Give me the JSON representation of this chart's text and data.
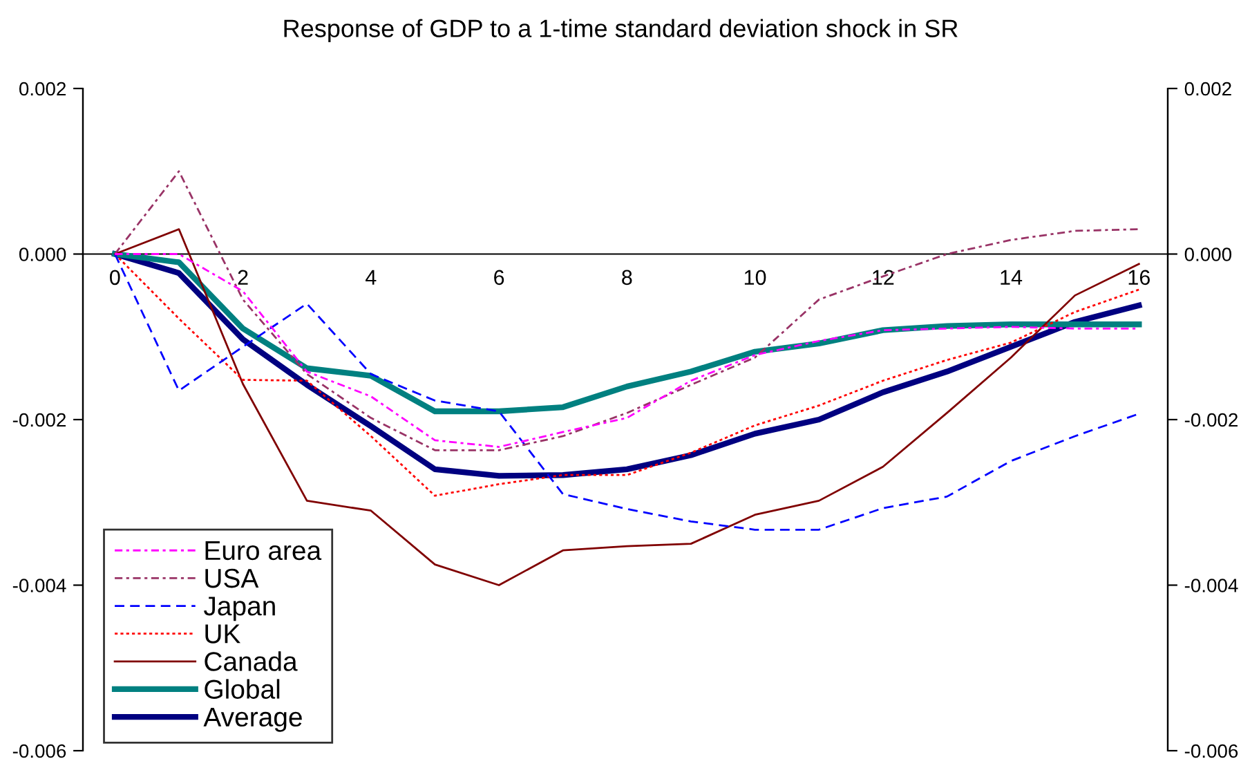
{
  "chart_data": {
    "type": "line",
    "title": "Response of GDP to a 1-time standard deviation shock in SR",
    "categories": [
      "0",
      null,
      "2",
      null,
      "4",
      null,
      "6",
      null,
      "8",
      null,
      "10",
      null,
      "12",
      null,
      "14",
      null,
      "16"
    ],
    "ylim": [
      -0.006,
      0.002
    ],
    "yticks": [
      {
        "value": -0.006,
        "label": "-0.006"
      },
      {
        "value": -0.004,
        "label": "-0.004"
      },
      {
        "value": -0.002,
        "label": "-0.002"
      },
      {
        "value": 0,
        "label": "0.000"
      },
      {
        "value": 0.002,
        "label": "0.002"
      }
    ],
    "y2lim": [
      -0.006,
      0.002
    ],
    "y2ticks": [
      {
        "value": -0.006,
        "label": "-0.006"
      },
      {
        "value": -0.004,
        "label": "-0.004"
      },
      {
        "value": -0.002,
        "label": "-0.002"
      },
      {
        "value": 0,
        "label": "0.000"
      },
      {
        "value": 0.002,
        "label": "0.002"
      }
    ],
    "grid": false,
    "legend": "bottom left",
    "marker": "none",
    "series": [
      {
        "name": "Euro area",
        "color": "#ff00ff",
        "line_style": "dashdot",
        "values": [
          0,
          0,
          -0.00045,
          -0.00142,
          -0.00172,
          -0.00225,
          -0.00233,
          -0.00215,
          -0.00198,
          -0.00153,
          -0.00122,
          -0.00105,
          -0.00092,
          -0.0009,
          -0.00088,
          -0.0009,
          -0.0009
        ]
      },
      {
        "name": "USA",
        "color": "#993366",
        "line_style": "dashdot",
        "values": [
          0,
          0.001,
          -0.00055,
          -0.00145,
          -0.00198,
          -0.00237,
          -0.00237,
          -0.0022,
          -0.00192,
          -0.00158,
          -0.00125,
          -0.00055,
          -0.00027,
          0,
          0.00017,
          0.00028,
          0.0003
        ]
      },
      {
        "name": "Japan",
        "color": "#0000ff",
        "line_style": "dashed",
        "values": [
          0,
          -0.00165,
          -0.00112,
          -0.0006,
          -0.00145,
          -0.00177,
          -0.0019,
          -0.0029,
          -0.00308,
          -0.00323,
          -0.00333,
          -0.00333,
          -0.00307,
          -0.00293,
          -0.0025,
          -0.0022,
          -0.00193
        ]
      },
      {
        "name": "UK",
        "color": "#ff0000",
        "line_style": "dotted",
        "values": [
          0,
          -0.00078,
          -0.00152,
          -0.00153,
          -0.0022,
          -0.00292,
          -0.00278,
          -0.00267,
          -0.00267,
          -0.0024,
          -0.00207,
          -0.00183,
          -0.00153,
          -0.00128,
          -0.00107,
          -0.0007,
          -0.00043
        ]
      },
      {
        "name": "Canada",
        "color": "#800000",
        "line_style": "solid",
        "values": [
          0,
          0.0003,
          -0.00157,
          -0.00298,
          -0.0031,
          -0.00375,
          -0.004,
          -0.00358,
          -0.00353,
          -0.0035,
          -0.00315,
          -0.00298,
          -0.00257,
          -0.00192,
          -0.00125,
          -0.0005,
          -0.00012
        ]
      },
      {
        "name": "Global",
        "color": "#008080",
        "line_style": "solid",
        "values": [
          0,
          -0.0001,
          -0.0009,
          -0.00138,
          -0.00147,
          -0.0019,
          -0.0019,
          -0.00185,
          -0.0016,
          -0.00142,
          -0.00118,
          -0.00108,
          -0.00092,
          -0.00087,
          -0.00085,
          -0.00085,
          -0.00085
        ]
      },
      {
        "name": "Average",
        "color": "#000080",
        "line_style": "solid",
        "values": [
          0,
          -0.00023,
          -0.00103,
          -0.00158,
          -0.00208,
          -0.0026,
          -0.00268,
          -0.00267,
          -0.0026,
          -0.00243,
          -0.00217,
          -0.002,
          -0.00167,
          -0.00142,
          -0.00112,
          -0.00082,
          -0.00062
        ]
      }
    ]
  }
}
